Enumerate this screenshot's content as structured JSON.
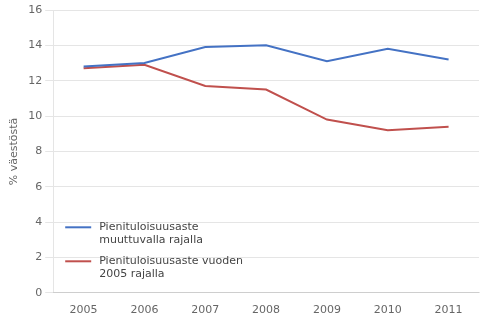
{
  "chart_data": {
    "type": "line",
    "ylabel": "% väestöstä",
    "x": [
      2005,
      2006,
      2007,
      2008,
      2009,
      2010,
      2011
    ],
    "series": [
      {
        "name": "Pienituloisuusaste\nmuuttuvalla rajalla",
        "color": "#4472C4",
        "values": [
          12.8,
          13.0,
          13.9,
          14.0,
          13.1,
          13.8,
          13.2
        ]
      },
      {
        "name": "Pienituloisuusaste vuoden\n2005 rajalla",
        "color": "#C0504D",
        "values": [
          12.7,
          12.9,
          11.7,
          11.5,
          9.8,
          9.2,
          9.4
        ]
      }
    ],
    "xlim": [
      2004.5,
      2011.5
    ],
    "xticks": [
      2005,
      2006,
      2007,
      2008,
      2009,
      2010,
      2011
    ],
    "ylim": [
      0,
      16
    ],
    "yticks": [
      0,
      2,
      4,
      6,
      8,
      10,
      12,
      14,
      16
    ],
    "grid": "y",
    "legend": "lower left"
  }
}
